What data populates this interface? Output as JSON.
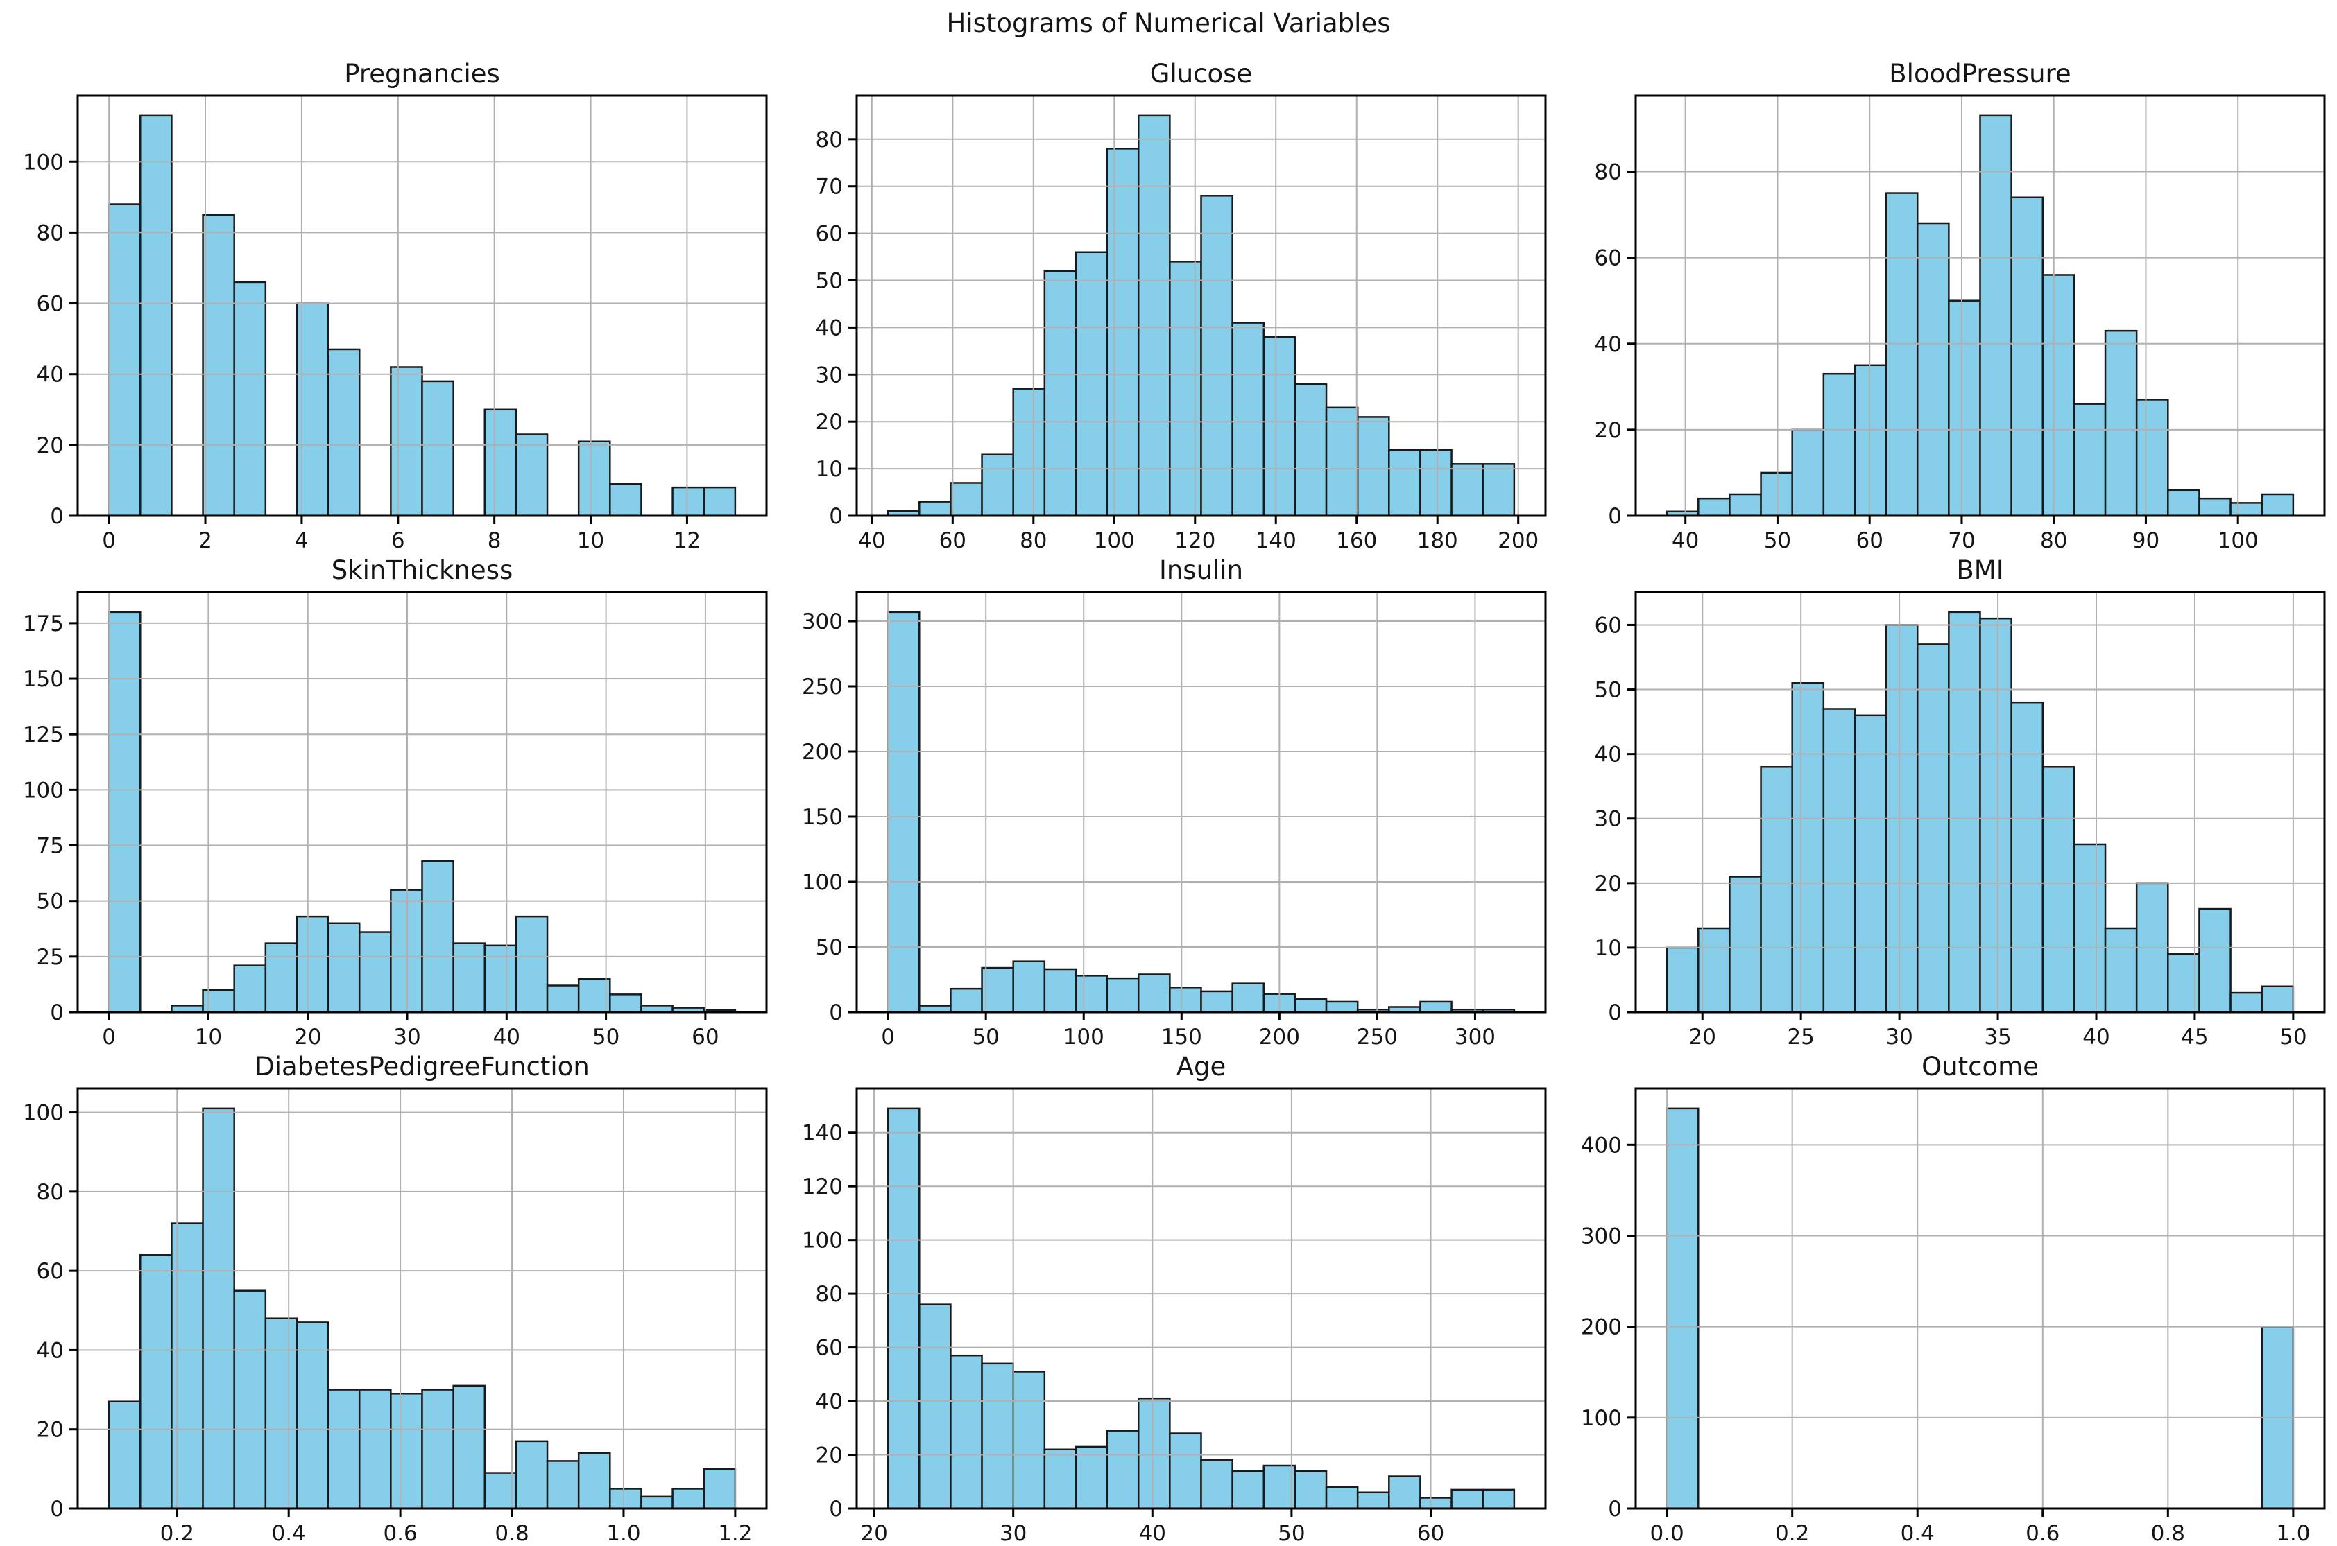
{
  "suptitle": "Histograms of Numerical Variables",
  "style": {
    "bar_fill": "#87ceeb",
    "bar_edge": "#1a1a1a",
    "grid_color": "#b0b0b0",
    "axis_color": "#000000",
    "text_color": "#151515",
    "background": "#ffffff"
  },
  "chart_data": [
    {
      "type": "bar",
      "title": "Pregnancies",
      "bin_start": 0,
      "bin_width": 0.65,
      "counts": [
        88,
        113,
        0,
        85,
        66,
        0,
        60,
        47,
        0,
        42,
        38,
        0,
        30,
        23,
        0,
        21,
        9,
        0,
        8,
        8
      ],
      "xlim": [
        -0.65,
        13.65
      ],
      "ylim": [
        0,
        118.65
      ],
      "xticks": [
        0,
        2,
        4,
        6,
        8,
        10,
        12
      ],
      "xtick_labels": [
        "0",
        "2",
        "4",
        "6",
        "8",
        "10",
        "12"
      ],
      "yticks": [
        0,
        20,
        40,
        60,
        80,
        100
      ],
      "ytick_labels": [
        "0",
        "20",
        "40",
        "60",
        "80",
        "100"
      ],
      "grid": true
    },
    {
      "type": "bar",
      "title": "Glucose",
      "bin_start": 44,
      "bin_width": 7.75,
      "counts": [
        1,
        3,
        7,
        13,
        27,
        52,
        56,
        78,
        85,
        54,
        68,
        41,
        38,
        28,
        23,
        21,
        14,
        14,
        11,
        11
      ],
      "xlim": [
        36.25,
        206.75
      ],
      "ylim": [
        0,
        89.25
      ],
      "xticks": [
        40,
        60,
        80,
        100,
        120,
        140,
        160,
        180,
        200
      ],
      "xtick_labels": [
        "40",
        "60",
        "80",
        "100",
        "120",
        "140",
        "160",
        "180",
        "200"
      ],
      "yticks": [
        0,
        10,
        20,
        30,
        40,
        50,
        60,
        70,
        80
      ],
      "ytick_labels": [
        "0",
        "10",
        "20",
        "30",
        "40",
        "50",
        "60",
        "70",
        "80"
      ],
      "grid": true
    },
    {
      "type": "bar",
      "title": "BloodPressure",
      "bin_start": 38,
      "bin_width": 3.4,
      "counts": [
        1,
        4,
        5,
        10,
        20,
        33,
        35,
        75,
        68,
        50,
        93,
        74,
        56,
        26,
        43,
        27,
        6,
        4,
        3,
        5
      ],
      "xlim": [
        34.6,
        109.4
      ],
      "ylim": [
        0,
        97.65
      ],
      "xticks": [
        40,
        50,
        60,
        70,
        80,
        90,
        100
      ],
      "xtick_labels": [
        "40",
        "50",
        "60",
        "70",
        "80",
        "90",
        "100"
      ],
      "yticks": [
        0,
        20,
        40,
        60,
        80
      ],
      "ytick_labels": [
        "0",
        "20",
        "40",
        "60",
        "80"
      ],
      "grid": true
    },
    {
      "type": "bar",
      "title": "SkinThickness",
      "bin_start": 0,
      "bin_width": 3.15,
      "counts": [
        180,
        0,
        3,
        10,
        21,
        31,
        43,
        40,
        36,
        55,
        68,
        31,
        30,
        43,
        12,
        15,
        8,
        3,
        2,
        1
      ],
      "xlim": [
        -3.15,
        66.15
      ],
      "ylim": [
        0,
        189
      ],
      "xticks": [
        0,
        10,
        20,
        30,
        40,
        50,
        60
      ],
      "xtick_labels": [
        "0",
        "10",
        "20",
        "30",
        "40",
        "50",
        "60"
      ],
      "yticks": [
        0,
        25,
        50,
        75,
        100,
        125,
        150,
        175
      ],
      "ytick_labels": [
        "0",
        "25",
        "50",
        "75",
        "100",
        "125",
        "150",
        "175"
      ],
      "grid": true
    },
    {
      "type": "bar",
      "title": "Insulin",
      "bin_start": 0,
      "bin_width": 16,
      "counts": [
        307,
        5,
        18,
        34,
        39,
        33,
        28,
        26,
        29,
        19,
        16,
        22,
        14,
        10,
        8,
        2,
        4,
        8,
        2,
        2
      ],
      "xlim": [
        -16,
        336
      ],
      "ylim": [
        0,
        322.35
      ],
      "xticks": [
        0,
        50,
        100,
        150,
        200,
        250,
        300
      ],
      "xtick_labels": [
        "0",
        "50",
        "100",
        "150",
        "200",
        "250",
        "300"
      ],
      "yticks": [
        0,
        50,
        100,
        150,
        200,
        250,
        300
      ],
      "ytick_labels": [
        "0",
        "50",
        "100",
        "150",
        "200",
        "250",
        "300"
      ],
      "grid": true
    },
    {
      "type": "bar",
      "title": "BMI",
      "bin_start": 18.2,
      "bin_width": 1.59,
      "counts": [
        10,
        13,
        21,
        38,
        51,
        47,
        46,
        60,
        57,
        62,
        61,
        48,
        38,
        26,
        13,
        20,
        9,
        16,
        3,
        4
      ],
      "xlim": [
        16.61,
        51.59
      ],
      "ylim": [
        0,
        65.1
      ],
      "xticks": [
        20,
        25,
        30,
        35,
        40,
        45,
        50
      ],
      "xtick_labels": [
        "20",
        "25",
        "30",
        "35",
        "40",
        "45",
        "50"
      ],
      "yticks": [
        0,
        10,
        20,
        30,
        40,
        50,
        60
      ],
      "ytick_labels": [
        "0",
        "10",
        "20",
        "30",
        "40",
        "50",
        "60"
      ],
      "grid": true
    },
    {
      "type": "bar",
      "title": "DiabetesPedigreeFunction",
      "bin_start": 0.078,
      "bin_width": 0.0561,
      "counts": [
        27,
        64,
        72,
        101,
        55,
        48,
        47,
        30,
        30,
        29,
        30,
        31,
        9,
        17,
        12,
        14,
        5,
        3,
        5,
        10
      ],
      "xlim": [
        0.0219,
        1.2561
      ],
      "ylim": [
        0,
        106.05
      ],
      "xticks": [
        0.2,
        0.4,
        0.6,
        0.8,
        1.0,
        1.2
      ],
      "xtick_labels": [
        "0.2",
        "0.4",
        "0.6",
        "0.8",
        "1.0",
        "1.2"
      ],
      "yticks": [
        0,
        20,
        40,
        60,
        80,
        100
      ],
      "ytick_labels": [
        "0",
        "20",
        "40",
        "60",
        "80",
        "100"
      ],
      "grid": true
    },
    {
      "type": "bar",
      "title": "Age",
      "bin_start": 21,
      "bin_width": 2.25,
      "counts": [
        149,
        76,
        57,
        54,
        51,
        22,
        23,
        29,
        41,
        28,
        18,
        14,
        16,
        14,
        8,
        6,
        12,
        4,
        7,
        7
      ],
      "xlim": [
        18.75,
        68.25
      ],
      "ylim": [
        0,
        156.45
      ],
      "xticks": [
        20,
        30,
        40,
        50,
        60
      ],
      "xtick_labels": [
        "20",
        "30",
        "40",
        "50",
        "60"
      ],
      "yticks": [
        0,
        20,
        40,
        60,
        80,
        100,
        120,
        140
      ],
      "ytick_labels": [
        "0",
        "20",
        "40",
        "60",
        "80",
        "100",
        "120",
        "140"
      ],
      "grid": true
    },
    {
      "type": "bar",
      "title": "Outcome",
      "bin_start": 0,
      "bin_width": 0.05,
      "counts": [
        440,
        0,
        0,
        0,
        0,
        0,
        0,
        0,
        0,
        0,
        0,
        0,
        0,
        0,
        0,
        0,
        0,
        0,
        0,
        200
      ],
      "xlim": [
        -0.05,
        1.05
      ],
      "ylim": [
        0,
        462
      ],
      "xticks": [
        0.0,
        0.2,
        0.4,
        0.6,
        0.8,
        1.0
      ],
      "xtick_labels": [
        "0.0",
        "0.2",
        "0.4",
        "0.6",
        "0.8",
        "1.0"
      ],
      "yticks": [
        0,
        100,
        200,
        300,
        400
      ],
      "ytick_labels": [
        "0",
        "100",
        "200",
        "300",
        "400"
      ],
      "grid": true
    }
  ]
}
